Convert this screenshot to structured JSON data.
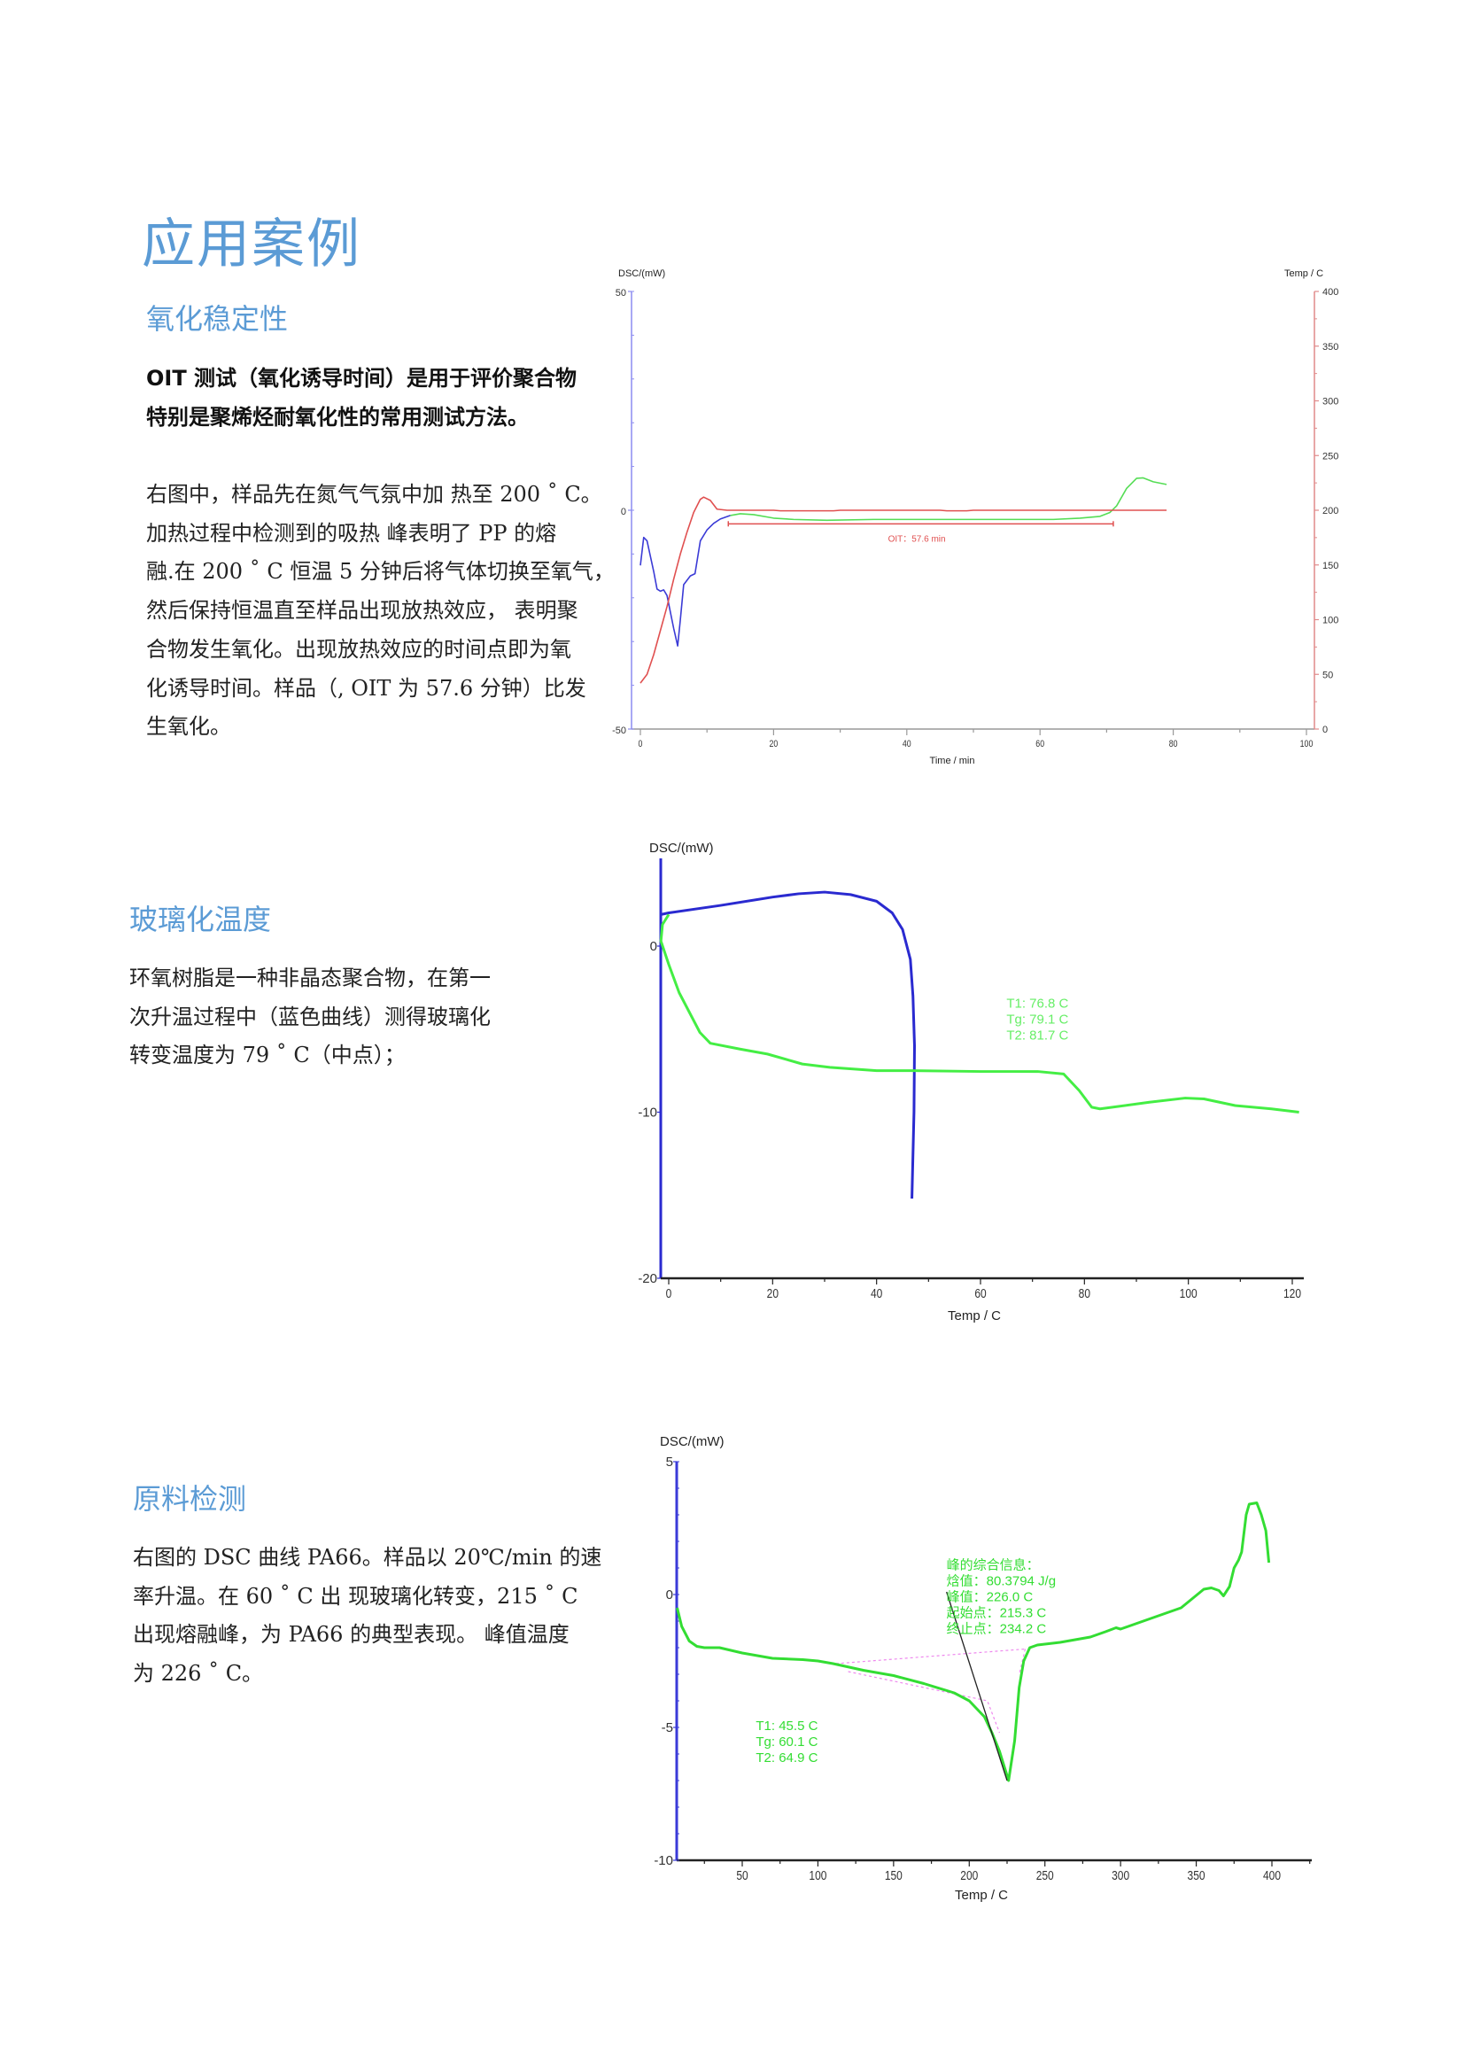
{
  "page": {
    "title": "应用案例"
  },
  "sections": [
    {
      "heading": "氧化稳定性",
      "lead_lines": [
        "OIT 测试（氧化诱导时间）是用于评价聚合物",
        "特别是聚烯烃耐氧化性的常用测试方法。"
      ],
      "lines": [
        "右图中，样品先在氮气气氛中加  热至 200 ˚ C。",
        "加热过程中检测到的吸热  峰表明了 PP 的熔",
        "融.在 200 ˚ C 恒温 5 分钟后将气体切换至氧气，",
        "然后保持恒温直至样品出现放热效应，  表明聚",
        "合物发生氧化。出现放热效应的时间点即为氧",
        "化诱导时间。样品（,  OIT 为 57.6 分钟）比发",
        "生氧化。"
      ]
    },
    {
      "heading": "玻璃化温度",
      "lines": [
        "环氧树脂是一种非晶态聚合物，在第一",
        "次升温过程中（蓝色曲线）测得玻璃化",
        "转变温度为 79 ˚ C（中点）；"
      ]
    },
    {
      "heading": "原料检测",
      "lines": [
        "右图的 DSC 曲线 PA66。样品以 20℃/min 的速",
        "率升温。在 60 ˚ C 出  现玻璃化转变，215 ˚ C",
        "出现熔融峰，为  PA66 的典型表现。  峰值温度",
        "为 226 ˚ C。"
      ]
    }
  ],
  "chart_data": [
    {
      "type": "line",
      "ylabel": "DSC/(mW)",
      "y2label": "Temp / C",
      "xlabel": "Time / min",
      "xlim": [
        0,
        100
      ],
      "ylim": [
        -50,
        50
      ],
      "y2lim": [
        0,
        400
      ],
      "xticks": [
        0,
        20,
        40,
        60,
        80,
        100
      ],
      "yticks": [
        -50,
        0,
        50
      ],
      "y2ticks": [
        0,
        50,
        100,
        150,
        200,
        250,
        300,
        350,
        400
      ],
      "grid": false,
      "series": [
        {
          "axis": "left",
          "color": "#3b3bd6",
          "points": [
            [
              0,
              -12.6
            ],
            [
              0.5,
              -6.2
            ],
            [
              1,
              -7
            ],
            [
              2,
              -14
            ],
            [
              2.5,
              -18
            ],
            [
              3,
              -18.5
            ],
            [
              3.5,
              -18.2
            ],
            [
              4,
              -19.5
            ],
            [
              5,
              -27
            ],
            [
              5.6,
              -31
            ],
            [
              6,
              -25
            ],
            [
              6.5,
              -17
            ],
            [
              7.5,
              -15
            ],
            [
              8.2,
              -14.5
            ],
            [
              9,
              -7
            ],
            [
              10,
              -4.5
            ],
            [
              11,
              -3
            ],
            [
              12,
              -2
            ],
            [
              13.5,
              -1.2
            ]
          ]
        },
        {
          "axis": "left",
          "color": "#55dd55",
          "points": [
            [
              13.5,
              -1.2
            ],
            [
              15,
              -0.8
            ],
            [
              17,
              -1
            ],
            [
              20,
              -1.8
            ],
            [
              23,
              -2.1
            ],
            [
              28,
              -2.3
            ],
            [
              35,
              -2.1
            ],
            [
              50,
              -2.1
            ],
            [
              62,
              -2.1
            ],
            [
              66,
              -1.8
            ],
            [
              69,
              -1.4
            ],
            [
              70.5,
              -0.5
            ],
            [
              71.5,
              1
            ],
            [
              73,
              5
            ],
            [
              74.5,
              7.3
            ],
            [
              75.5,
              7.4
            ],
            [
              77,
              6.5
            ],
            [
              79,
              5.9
            ]
          ]
        },
        {
          "axis": "right",
          "color": "#e05050",
          "points": [
            [
              0,
              42
            ],
            [
              1,
              50
            ],
            [
              2,
              68
            ],
            [
              3,
              90
            ],
            [
              4,
              112
            ],
            [
              5,
              137
            ],
            [
              6,
              160
            ],
            [
              7,
              180
            ],
            [
              8,
              198
            ],
            [
              9,
              210
            ],
            [
              9.5,
              212
            ],
            [
              10.5,
              209
            ],
            [
              11.5,
              201
            ],
            [
              13,
              200
            ],
            [
              20,
              200
            ],
            [
              21,
              199.5
            ],
            [
              29,
              199.5
            ],
            [
              30,
              200
            ],
            [
              45,
              200
            ],
            [
              46,
              199.5
            ],
            [
              49,
              199.5
            ],
            [
              50,
              200
            ],
            [
              79,
              200
            ]
          ]
        }
      ],
      "oit_bar": {
        "x": [
          13.2,
          71
        ],
        "y": -3.1,
        "color": "#e05050"
      },
      "annotations": [
        {
          "lines": [
            "OIT：57.6 min"
          ],
          "x": 41.5,
          "y": -5.2,
          "color": "#e05050"
        }
      ]
    },
    {
      "type": "line",
      "ylabel": "DSC/(mW)",
      "xlabel": "Temp / C",
      "xlim": [
        -2,
        122
      ],
      "ylim": [
        -20,
        5
      ],
      "xticks": [
        0,
        20,
        40,
        60,
        80,
        100,
        120
      ],
      "yticks": [
        0,
        -10,
        -20
      ],
      "grid": false,
      "series": [
        {
          "color": "#2a2ad0",
          "points": [
            [
              -1.5,
              1.9
            ],
            [
              0,
              2.0
            ],
            [
              10,
              2.45
            ],
            [
              20,
              2.95
            ],
            [
              25,
              3.15
            ],
            [
              30,
              3.25
            ],
            [
              35,
              3.1
            ],
            [
              40,
              2.7
            ],
            [
              43,
              2.0
            ],
            [
              45,
              1.0
            ],
            [
              46.5,
              -0.8
            ],
            [
              47,
              -3
            ],
            [
              47.3,
              -6
            ],
            [
              47.2,
              -10
            ],
            [
              46.8,
              -15.2
            ]
          ]
        },
        {
          "color": "#44ee44",
          "points": [
            [
              0,
              1.9
            ],
            [
              -1.2,
              1.3
            ],
            [
              -1.5,
              0.3
            ],
            [
              0,
              -1.1
            ],
            [
              2,
              -2.8
            ],
            [
              4,
              -4
            ],
            [
              6,
              -5.2
            ],
            [
              8,
              -5.85
            ],
            [
              13.7,
              -6.2
            ],
            [
              19,
              -6.5
            ],
            [
              25.7,
              -7.1
            ],
            [
              31,
              -7.3
            ],
            [
              40,
              -7.5
            ],
            [
              47,
              -7.5
            ],
            [
              60,
              -7.55
            ],
            [
              71,
              -7.55
            ],
            [
              76,
              -7.7
            ],
            [
              79,
              -8.7
            ],
            [
              81.4,
              -9.7
            ],
            [
              83,
              -9.8
            ],
            [
              92.5,
              -9.4
            ],
            [
              99.4,
              -9.15
            ],
            [
              103,
              -9.2
            ],
            [
              109,
              -9.6
            ],
            [
              116,
              -9.8
            ],
            [
              121.3,
              -10.0
            ]
          ]
        }
      ],
      "annotations": [
        {
          "lines": [
            "T1:  76.8 C",
            "Tg:  79.1 C",
            "T2:  81.7 C"
          ],
          "x": 65,
          "y": -2.9,
          "color": "#66ee66"
        }
      ]
    },
    {
      "type": "line",
      "ylabel": "DSC/(mW)",
      "xlabel": "Temp / C",
      "xlim": [
        5,
        425
      ],
      "ylim": [
        -10,
        5
      ],
      "xticks": [
        50,
        100,
        150,
        200,
        250,
        300,
        350,
        400
      ],
      "yticks": [
        5,
        0,
        -5,
        -10
      ],
      "grid": false,
      "series": [
        {
          "color": "#33dd33",
          "points": [
            [
              7,
              -0.5
            ],
            [
              10,
              -1.2
            ],
            [
              15,
              -1.75
            ],
            [
              20,
              -1.95
            ],
            [
              25,
              -2.0
            ],
            [
              35,
              -2.0
            ],
            [
              50,
              -2.2
            ],
            [
              60,
              -2.3
            ],
            [
              70,
              -2.4
            ],
            [
              90,
              -2.45
            ],
            [
              100,
              -2.5
            ],
            [
              110,
              -2.6
            ],
            [
              130,
              -2.85
            ],
            [
              150,
              -3.05
            ],
            [
              170,
              -3.35
            ],
            [
              190,
              -3.7
            ],
            [
              200,
              -4.0
            ],
            [
              210,
              -4.6
            ],
            [
              215,
              -5.2
            ],
            [
              220,
              -5.9
            ],
            [
              226,
              -7.0
            ],
            [
              230,
              -5.5
            ],
            [
              233,
              -3.5
            ],
            [
              236,
              -2.5
            ],
            [
              240,
              -2.0
            ],
            [
              245,
              -1.9
            ],
            [
              260,
              -1.8
            ],
            [
              280,
              -1.6
            ],
            [
              290,
              -1.4
            ],
            [
              297,
              -1.25
            ],
            [
              300,
              -1.3
            ],
            [
              320,
              -0.9
            ],
            [
              340,
              -0.5
            ],
            [
              355,
              0.2
            ],
            [
              360,
              0.25
            ],
            [
              365,
              0.15
            ],
            [
              368,
              -0.05
            ],
            [
              372,
              0.3
            ],
            [
              375,
              1.0
            ],
            [
              378,
              1.3
            ],
            [
              380,
              1.6
            ],
            [
              383,
              3.0
            ],
            [
              385,
              3.4
            ],
            [
              390,
              3.45
            ],
            [
              393,
              3.0
            ],
            [
              396,
              2.4
            ],
            [
              398,
              1.2
            ]
          ]
        }
      ],
      "baselines": [
        {
          "color": "#ee88ee",
          "points": [
            [
              112,
              -2.6
            ],
            [
              237,
              -2.05
            ]
          ]
        },
        {
          "color": "#ee88ee",
          "points": [
            [
              120,
              -2.9
            ],
            [
              212,
              -4.0
            ],
            [
              220,
              -5.2
            ]
          ]
        },
        {
          "color": "#ee88ee",
          "points": [
            [
              237,
              -2.05
            ],
            [
              233,
              -3.0
            ]
          ]
        }
      ],
      "tangent": {
        "color": "#222222",
        "points": [
          [
            185,
            0.1
          ],
          [
            225,
            -7.0
          ]
        ]
      },
      "annotations": [
        {
          "lines": [
            "峰的综合信息：",
            "焓值：80.3794 J/g",
            "峰值：226.0 C",
            "起始点：215.3 C",
            "终止点：234.2 C"
          ],
          "x": 185,
          "y": 1.45,
          "color": "#33dd33"
        },
        {
          "lines": [
            "T1:  45.5 C",
            "Tg:  60.1 C",
            "T2:  64.9 C"
          ],
          "x": 59,
          "y": -4.6,
          "color": "#33dd33"
        }
      ]
    }
  ]
}
